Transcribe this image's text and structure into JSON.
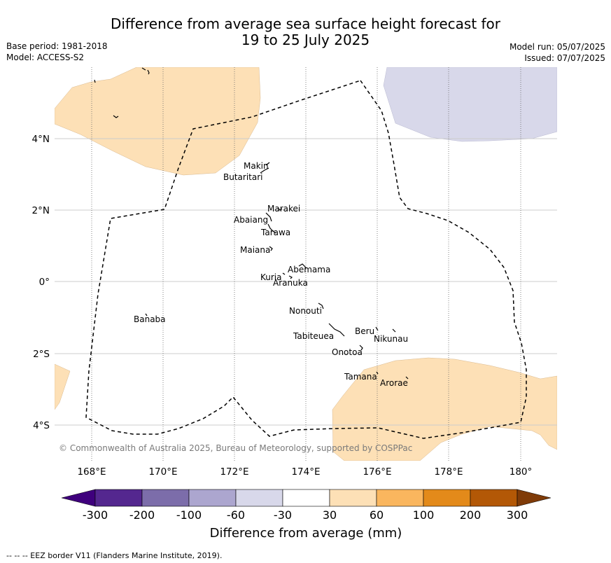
{
  "header": {
    "title_line1": "Difference from average sea surface height forecast for",
    "title_line2": "19 to 25 July 2025",
    "base_period": "Base period: 1981-2018",
    "model": "Model: ACCESS-S2",
    "model_run": "Model run: 05/07/2025",
    "issued": "Issued: 07/07/2025"
  },
  "map": {
    "lon_ticks": [
      "168°E",
      "170°E",
      "172°E",
      "174°E",
      "176°E",
      "178°E",
      "180°"
    ],
    "lat_ticks": [
      "4°N",
      "2°N",
      "0°",
      "2°S",
      "4°S"
    ],
    "places": [
      "Makin",
      "Butaritari",
      "Marakei",
      "Abaiang",
      "Tarawa",
      "Maiana",
      "Abemama",
      "Kuria",
      "Aranuka",
      "Nonouti",
      "Banaba",
      "Beru",
      "Nikunau",
      "Tabiteuea",
      "Onotoa",
      "Tamana",
      "Arorae"
    ],
    "copyright": "© Commonwealth of Australia 2025, Bureau of Meteorology, supported by COSPPac",
    "colors": {
      "positive_30_60": "#fde0b6",
      "negative_60_30": "#d8d8ea",
      "eez_line": "#000000"
    }
  },
  "colorbar": {
    "ticks": [
      "-300",
      "-200",
      "-100",
      "-60",
      "-30",
      "30",
      "60",
      "100",
      "200",
      "300"
    ],
    "colors": [
      "#3f007d",
      "#54278f",
      "#7c6daa",
      "#aca6cf",
      "#d8d8ea",
      "#ffffff",
      "#fde0b6",
      "#fab65e",
      "#e38a1a",
      "#b35806",
      "#7f3b08"
    ],
    "title": "Difference from average (mm)"
  },
  "footer": {
    "eez_note": "--  --  -- EEZ border V11 (Flanders Marine Institute, 2019)."
  }
}
